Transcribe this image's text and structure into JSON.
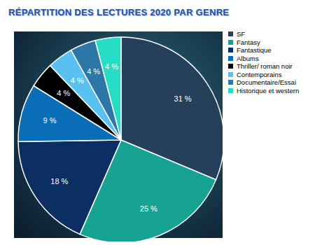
{
  "chart_data": {
    "type": "pie",
    "title": "RÉPARTITION DES LECTURES 2020 PAR GENRE",
    "categories": [
      "SF",
      "Fantasy",
      "Fantastique",
      "Albums",
      "Thriller/ roman noir",
      "Contemporains",
      "Documentaire/Essai",
      "Historique et western"
    ],
    "values": [
      31,
      25,
      18,
      9,
      4,
      4,
      4,
      4
    ],
    "value_labels": [
      "31 %",
      "25 %",
      "18 %",
      "9 %",
      "4 %",
      "4 %",
      "4 %",
      "4 %"
    ],
    "colors": [
      "#263f5a",
      "#17a393",
      "#0c2f63",
      "#0a6db8",
      "#000000",
      "#58c1f2",
      "#2d77a8",
      "#27dcc4"
    ],
    "data_labels": true,
    "legend": "right"
  }
}
